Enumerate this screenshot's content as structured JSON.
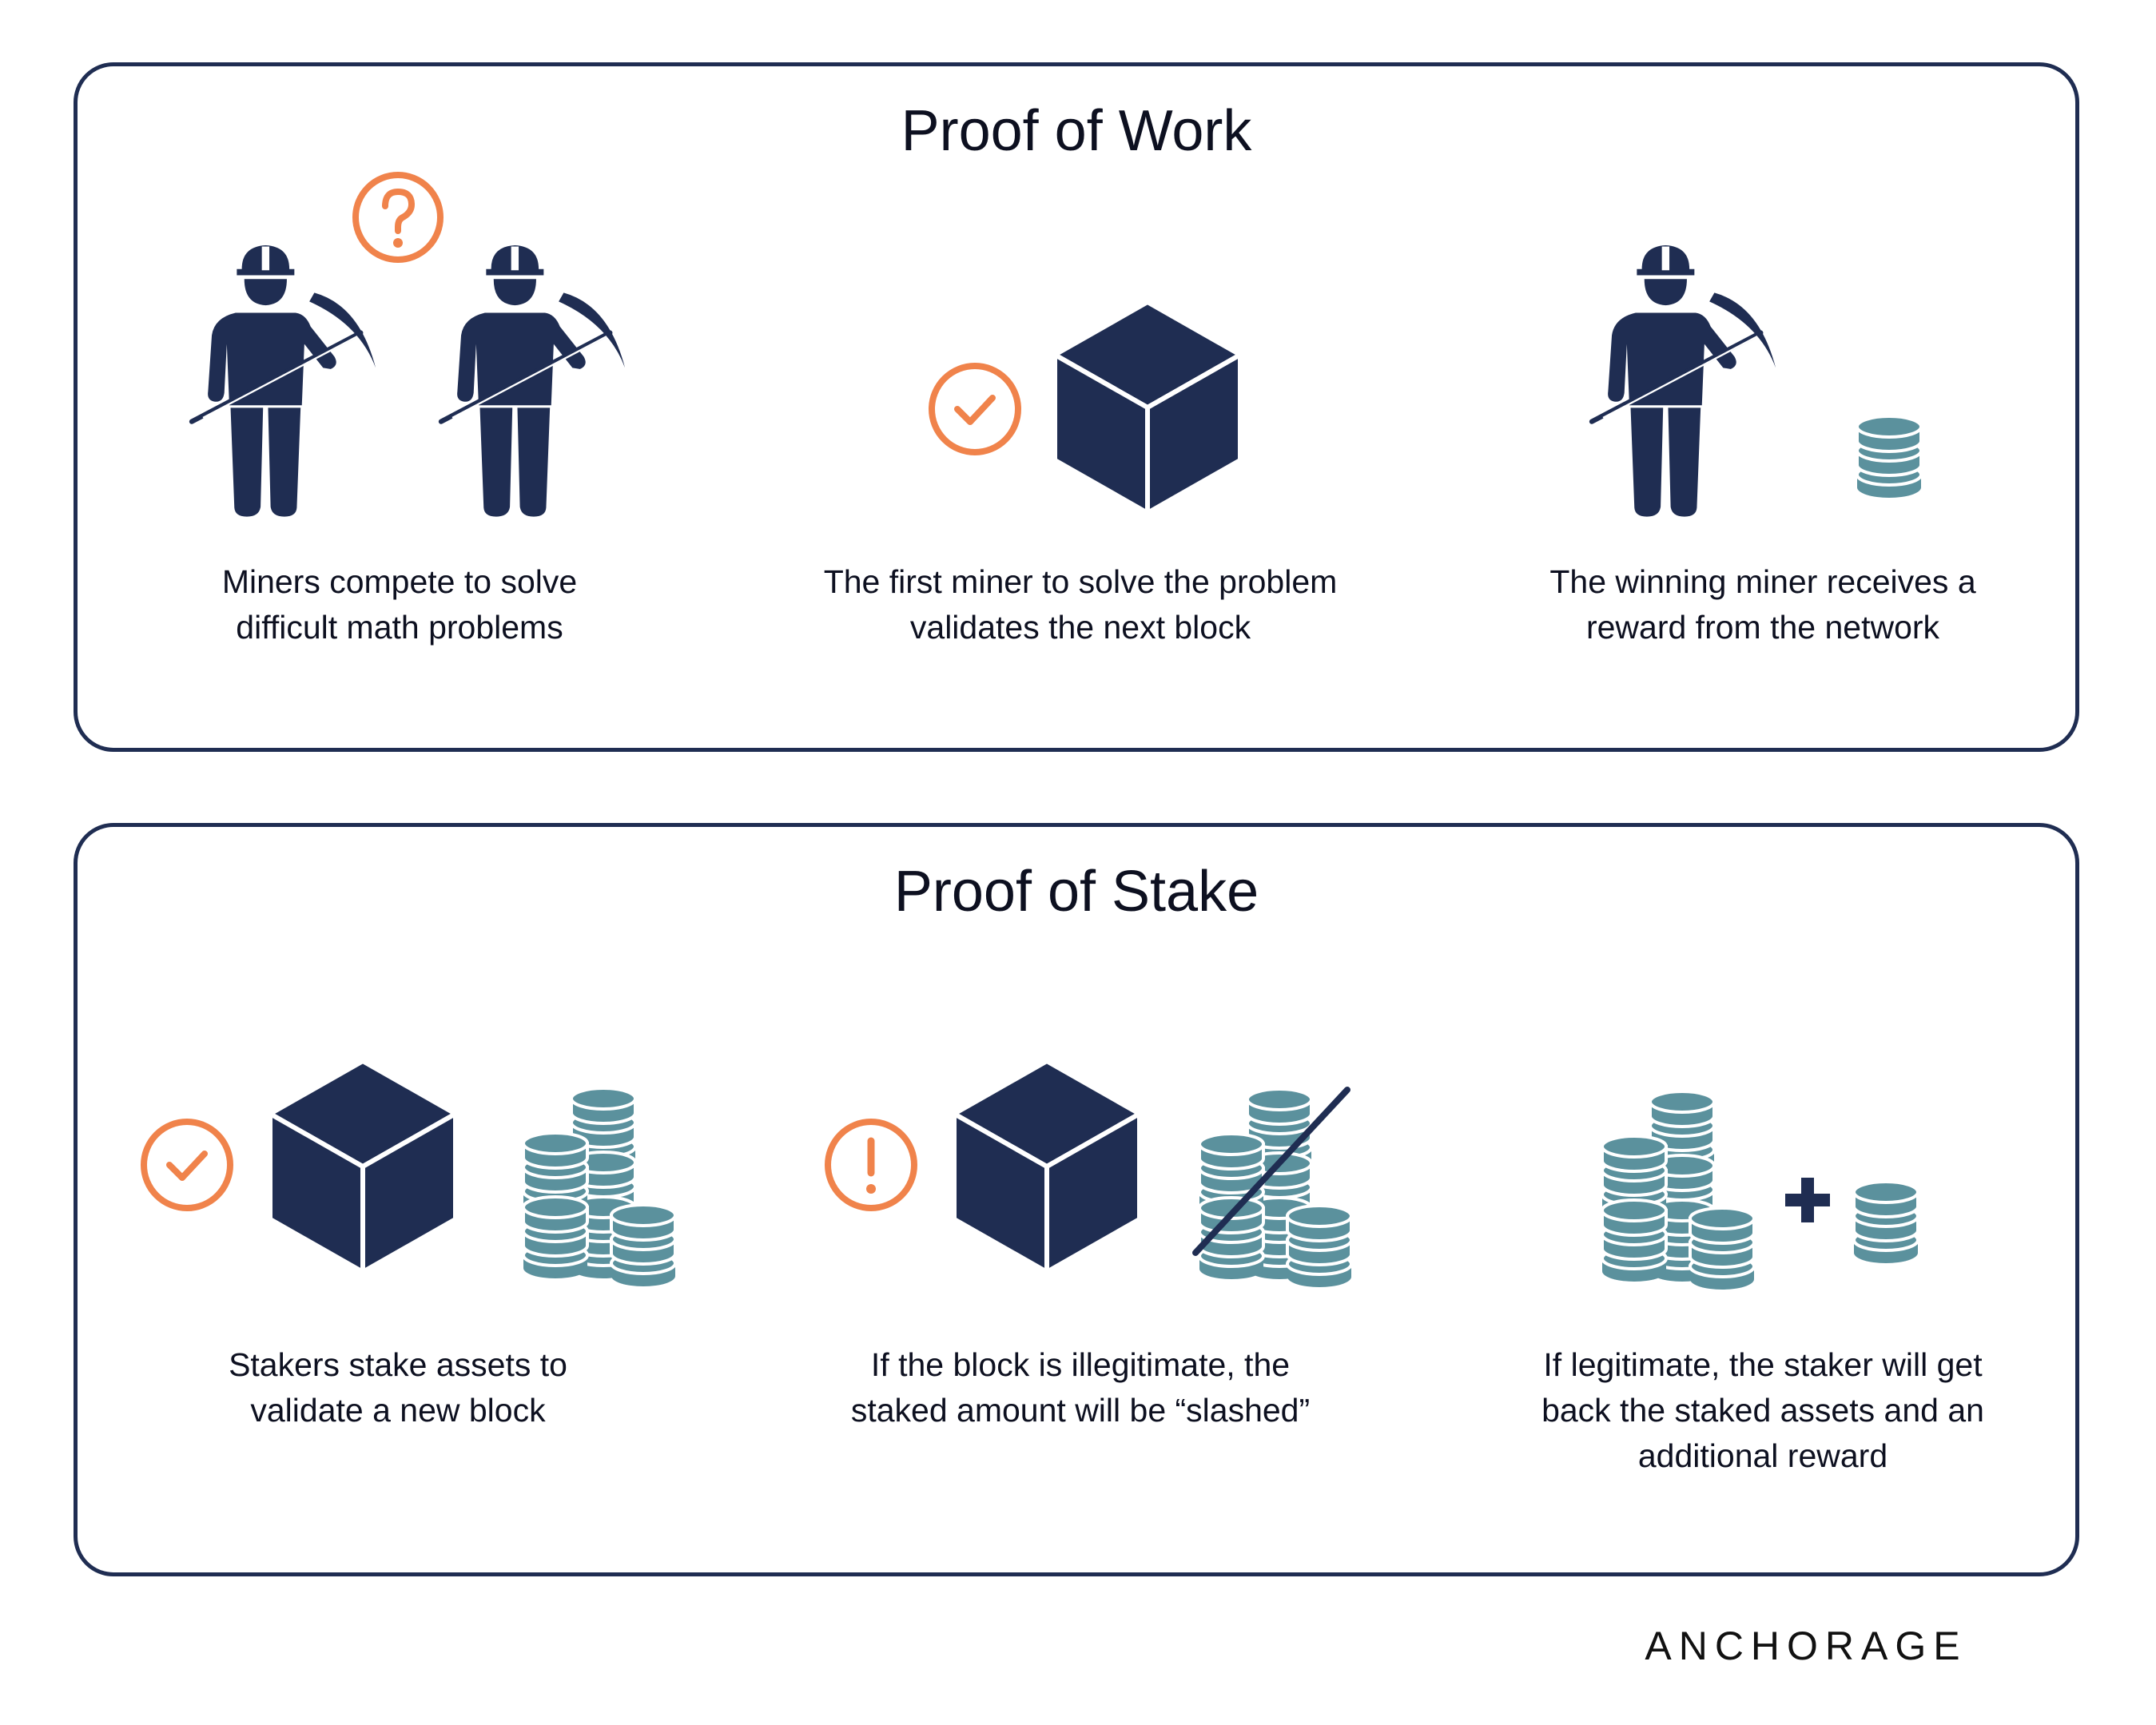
{
  "colors": {
    "navy": "#1f2d52",
    "orange": "#f0834b",
    "teal": "#5b919d",
    "text": "#0d1020"
  },
  "proof_of_work": {
    "title": "Proof of Work",
    "steps": [
      {
        "caption": "Miners compete to solve difficult math problems",
        "icons": [
          "question-icon",
          "miner-icon",
          "miner-icon"
        ]
      },
      {
        "caption": "The first miner to solve the problem validates the next block",
        "icons": [
          "check-icon",
          "block-icon"
        ]
      },
      {
        "caption": "The winning miner receives a reward from the network",
        "icons": [
          "miner-icon",
          "coin-icon"
        ]
      }
    ]
  },
  "proof_of_stake": {
    "title": "Proof of Stake",
    "steps": [
      {
        "caption": "Stakers stake assets to validate a new block",
        "icons": [
          "check-icon",
          "block-icon",
          "coin-stacks-icon"
        ]
      },
      {
        "caption": "If the block is illegitimate, the staked amount will be “slashed”",
        "icons": [
          "exclamation-icon",
          "block-icon",
          "slashed-coin-stacks-icon"
        ]
      },
      {
        "caption": "If legitimate, the staker will get back the staked assets and an additional reward",
        "icons": [
          "coin-stacks-icon",
          "plus-icon",
          "coin-icon"
        ]
      }
    ]
  },
  "brand": {
    "logo_text": "ANCHORAGE"
  }
}
